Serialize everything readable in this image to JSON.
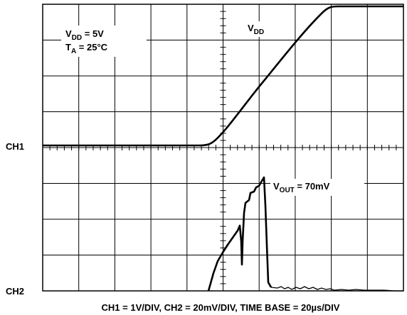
{
  "annotations": {
    "vdd_setting": {
      "base": "V",
      "sub": "DD",
      "rest": " = 5V"
    },
    "ta_setting": {
      "base": "T",
      "sub": "A",
      "rest": " = 25°C"
    },
    "vdd_trace": {
      "base": "V",
      "sub": "DD"
    },
    "vout_trace": {
      "base": "V",
      "sub": "OUT",
      "rest": " = 70mV"
    }
  },
  "channels": [
    "CH1",
    "CH2"
  ],
  "caption": "CH1 = 1V/DIV, CH2 = 20mV/DIV, TIME BASE = 20µs/DIV"
}
